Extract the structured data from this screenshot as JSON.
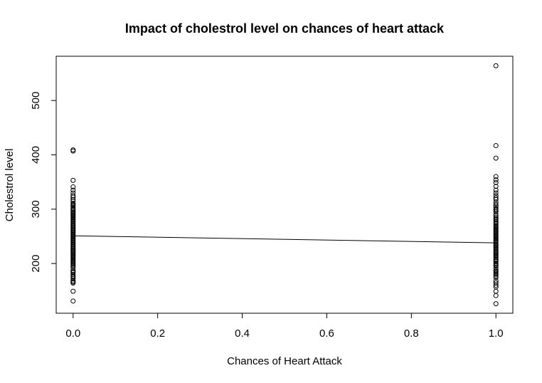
{
  "chart_data": {
    "type": "scatter",
    "title": "Impact of cholestrol level on chances of heart attack",
    "x_label": "Chances of Heart Attack",
    "y_label": "Cholestrol level",
    "color": "#000000",
    "xlim": [
      -0.04,
      1.04
    ],
    "ylim": [
      108.5,
      581.5
    ],
    "xticks": [
      {
        "value": 0,
        "label": "0.0"
      },
      {
        "value": 0.2,
        "label": "0.2"
      },
      {
        "value": 0.4,
        "label": "0.4"
      },
      {
        "value": 0.6,
        "label": "0.6"
      },
      {
        "value": 0.8,
        "label": "0.8"
      },
      {
        "value": 1,
        "label": "1.0"
      }
    ],
    "yticks": [
      200,
      300,
      400,
      500
    ],
    "x": [
      0,
      0,
      0,
      0,
      0,
      0,
      0,
      0,
      0,
      0,
      0,
      0,
      0,
      0,
      0,
      0,
      0,
      0,
      0,
      0,
      0,
      0,
      0,
      0,
      0,
      0,
      0,
      0,
      0,
      0,
      0,
      0,
      0,
      0,
      0,
      0,
      0,
      0,
      0,
      0,
      0,
      0,
      0,
      0,
      0,
      0,
      0,
      0,
      0,
      0,
      0,
      0,
      0,
      0,
      0,
      0,
      0,
      0,
      0,
      0,
      0,
      0,
      0,
      0,
      0,
      0,
      0,
      0,
      0,
      0,
      0,
      0,
      0,
      0,
      0,
      0,
      0,
      0,
      0,
      0,
      0,
      1,
      1,
      1,
      1,
      1,
      1,
      1,
      1,
      1,
      1,
      1,
      1,
      1,
      1,
      1,
      1,
      1,
      1,
      1,
      1,
      1,
      1,
      1,
      1,
      1,
      1,
      1,
      1,
      1,
      1,
      1,
      1,
      1,
      1,
      1,
      1,
      1,
      1,
      1,
      1,
      1,
      1,
      1,
      1,
      1,
      1,
      1,
      1,
      1,
      1,
      1,
      1,
      1,
      1,
      1,
      1,
      1,
      1,
      1,
      1,
      1,
      1,
      1,
      1,
      1,
      1,
      1,
      1,
      1,
      1,
      1,
      1,
      1,
      1,
      1,
      1,
      1,
      1,
      1
    ],
    "values": [
      131,
      149,
      164,
      166,
      168,
      172,
      175,
      177,
      180,
      183,
      185,
      187,
      192,
      195,
      197,
      199,
      201,
      203,
      205,
      207,
      209,
      211,
      213,
      215,
      217,
      219,
      221,
      223,
      225,
      227,
      229,
      231,
      233,
      235,
      237,
      239,
      241,
      243,
      245,
      247,
      249,
      251,
      253,
      255,
      257,
      259,
      261,
      263,
      265,
      267,
      269,
      271,
      273,
      275,
      277,
      279,
      281,
      283,
      285,
      287,
      289,
      291,
      293,
      295,
      298,
      300,
      302,
      305,
      307,
      309,
      311,
      315,
      318,
      322,
      325,
      330,
      335,
      341,
      353,
      407,
      409,
      126,
      141,
      149,
      157,
      160,
      164,
      168,
      174,
      177,
      180,
      182,
      184,
      186,
      188,
      192,
      196,
      197,
      199,
      201,
      204,
      206,
      208,
      211,
      213,
      215,
      217,
      219,
      221,
      223,
      226,
      228,
      230,
      232,
      234,
      236,
      239,
      241,
      243,
      245,
      247,
      249,
      250,
      252,
      254,
      256,
      258,
      260,
      262,
      264,
      266,
      268,
      270,
      273,
      275,
      277,
      280,
      282,
      285,
      288,
      290,
      295,
      298,
      300,
      303,
      306,
      309,
      313,
      318,
      321,
      325,
      330,
      335,
      342,
      349,
      354,
      360,
      394,
      417,
      564
    ],
    "trend_line": {
      "x": [
        0,
        1
      ],
      "values": [
        251,
        238
      ]
    }
  }
}
